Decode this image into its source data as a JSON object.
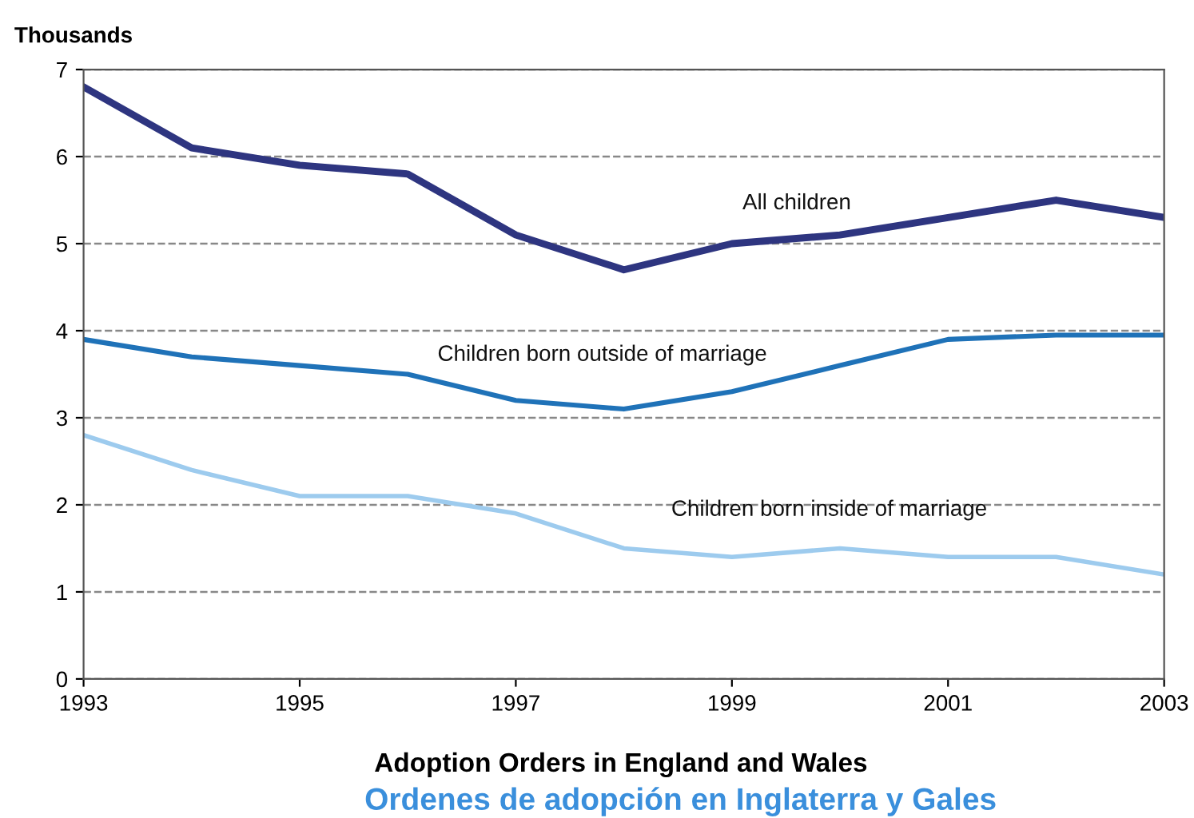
{
  "chart_data": {
    "type": "line",
    "title": "Adoption Orders in England and Wales",
    "subtitle": "Ordenes de adopción en Inglaterra y Gales",
    "ylabel": "Thousands",
    "x": [
      1993,
      1994,
      1995,
      1996,
      1997,
      1998,
      1999,
      2000,
      2001,
      2002,
      2003
    ],
    "series": [
      {
        "name": "All children",
        "color": "#2e3580",
        "values": [
          6.8,
          6.1,
          5.9,
          5.8,
          5.1,
          4.7,
          5.0,
          5.1,
          5.3,
          5.5,
          5.3
        ]
      },
      {
        "name": "Children born outside of marriage",
        "color": "#1f72b8",
        "values": [
          3.9,
          3.7,
          3.6,
          3.5,
          3.2,
          3.1,
          3.3,
          3.6,
          3.9,
          3.95,
          3.95
        ]
      },
      {
        "name": "Children born inside of marriage",
        "color": "#9dcbee",
        "values": [
          2.8,
          2.4,
          2.1,
          2.1,
          1.9,
          1.5,
          1.4,
          1.5,
          1.4,
          1.4,
          1.2
        ]
      }
    ],
    "xlim": [
      1993,
      2003
    ],
    "xticks": [
      1993,
      1995,
      1997,
      1999,
      2001,
      2003
    ],
    "ylim": [
      0,
      7
    ],
    "yticks": [
      0,
      1,
      2,
      3,
      4,
      5,
      6,
      7
    ],
    "grid": "y",
    "legend": false,
    "marker": "none",
    "line_style": "solid"
  }
}
